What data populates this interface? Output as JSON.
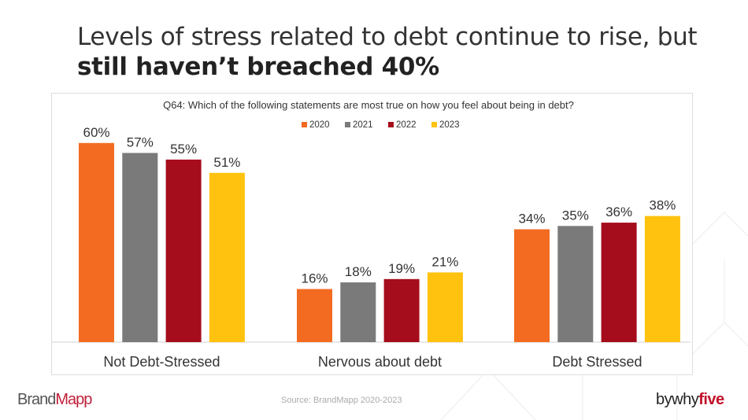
{
  "title": {
    "normal": "Levels of stress related to debt continue to rise, but ",
    "bold": "still haven’t breached 40%"
  },
  "chart_data": {
    "type": "bar",
    "title": "Q64: Which of the following statements are most true on how you feel about being in debt?",
    "categories": [
      "Not Debt-Stressed",
      "Nervous about debt",
      "Debt Stressed"
    ],
    "series": [
      {
        "name": "2020",
        "color": "#f26b21",
        "values": [
          60,
          16,
          34
        ]
      },
      {
        "name": "2021",
        "color": "#7a7a7a",
        "values": [
          57,
          18,
          35
        ]
      },
      {
        "name": "2022",
        "color": "#a50d1c",
        "values": [
          55,
          19,
          36
        ]
      },
      {
        "name": "2023",
        "color": "#ffc20e",
        "values": [
          51,
          21,
          38
        ]
      }
    ],
    "value_suffix": "%",
    "ylim": [
      0,
      60
    ],
    "legend": "top-center",
    "grid": false
  },
  "source": "Source: BrandMapp 2020-2023",
  "logos": {
    "left_a": "Brand",
    "left_b": "Mapp",
    "right_a": "bywhy",
    "right_b": "five"
  }
}
